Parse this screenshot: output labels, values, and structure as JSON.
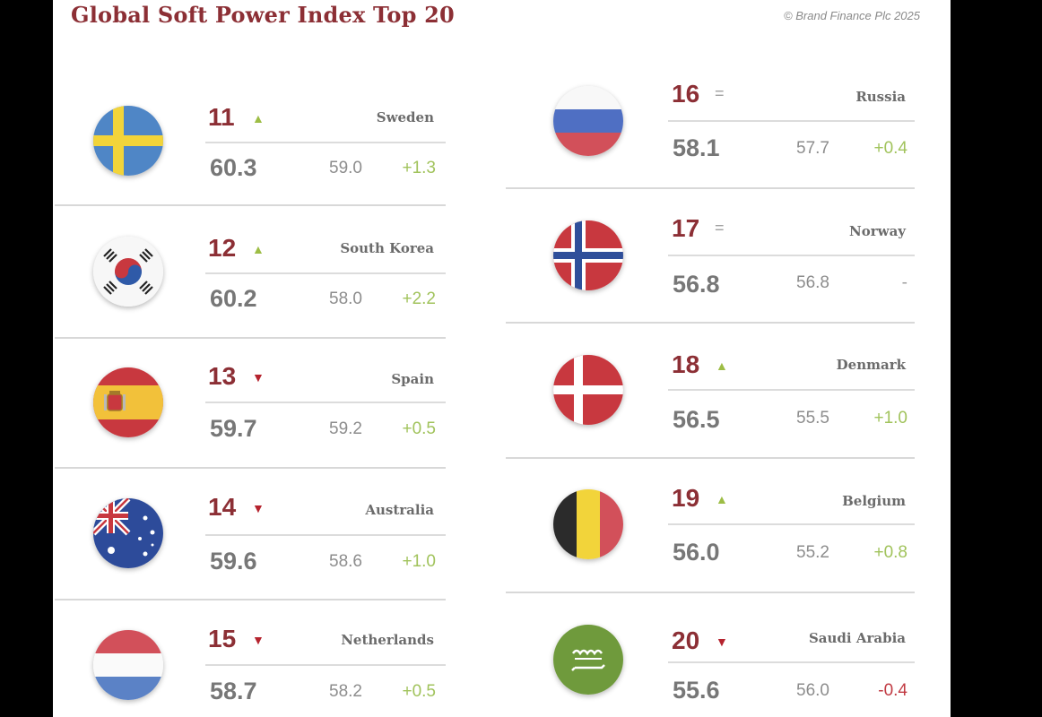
{
  "header": {
    "title": "Global Soft Power Index Top 20",
    "copyright": "© Brand Finance Plc 2025"
  },
  "entries": [
    {
      "rank": "11",
      "trend": "up",
      "trend_symbol": "▲",
      "country": "Sweden",
      "score": "60.3",
      "previous": "59.0",
      "change": "+1.3",
      "change_type": "positive",
      "flag": "sweden-flag-icon"
    },
    {
      "rank": "12",
      "trend": "up",
      "trend_symbol": "▲",
      "country": "South Korea",
      "score": "60.2",
      "previous": "58.0",
      "change": "+2.2",
      "change_type": "positive",
      "flag": "south-korea-flag-icon"
    },
    {
      "rank": "13",
      "trend": "down",
      "trend_symbol": "▼",
      "country": "Spain",
      "score": "59.7",
      "previous": "59.2",
      "change": "+0.5",
      "change_type": "positive",
      "flag": "spain-flag-icon"
    },
    {
      "rank": "14",
      "trend": "down",
      "trend_symbol": "▼",
      "country": "Australia",
      "score": "59.6",
      "previous": "58.6",
      "change": "+1.0",
      "change_type": "positive",
      "flag": "australia-flag-icon"
    },
    {
      "rank": "15",
      "trend": "down",
      "trend_symbol": "▼",
      "country": "Netherlands",
      "score": "58.7",
      "previous": "58.2",
      "change": "+0.5",
      "change_type": "positive",
      "flag": "netherlands-flag-icon"
    },
    {
      "rank": "16",
      "trend": "equal",
      "trend_symbol": "=",
      "country": "Russia",
      "score": "58.1",
      "previous": "57.7",
      "change": "+0.4",
      "change_type": "positive",
      "flag": "russia-flag-icon"
    },
    {
      "rank": "17",
      "trend": "equal",
      "trend_symbol": "=",
      "country": "Norway",
      "score": "56.8",
      "previous": "56.8",
      "change": "-",
      "change_type": "none",
      "flag": "norway-flag-icon"
    },
    {
      "rank": "18",
      "trend": "up",
      "trend_symbol": "▲",
      "country": "Denmark",
      "score": "56.5",
      "previous": "55.5",
      "change": "+1.0",
      "change_type": "positive",
      "flag": "denmark-flag-icon"
    },
    {
      "rank": "19",
      "trend": "up",
      "trend_symbol": "▲",
      "country": "Belgium",
      "score": "56.0",
      "previous": "55.2",
      "change": "+0.8",
      "change_type": "positive",
      "flag": "belgium-flag-icon"
    },
    {
      "rank": "20",
      "trend": "down",
      "trend_symbol": "▼",
      "country": "Saudi Arabia",
      "score": "55.6",
      "previous": "56.0",
      "change": "-0.4",
      "change_type": "negative",
      "flag": "saudi-arabia-flag-icon"
    }
  ],
  "colors": {
    "title": "#8c2f35",
    "trend_up": "#9dbd45",
    "trend_down": "#b5232e",
    "change_positive": "#a1c35c",
    "change_negative": "#c13b43"
  }
}
